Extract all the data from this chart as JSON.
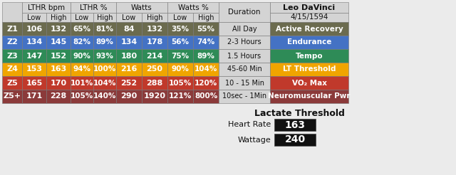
{
  "zones": [
    "Z1",
    "Z2",
    "Z3",
    "Z4",
    "Z5",
    "Z5+"
  ],
  "zone_colors": [
    "#6b6b4e",
    "#4472c4",
    "#2e8b57",
    "#f0a500",
    "#c0392b",
    "#8b3a3a"
  ],
  "lthr_bpm_low": [
    106,
    134,
    147,
    153,
    165,
    171
  ],
  "lthr_bpm_high": [
    132,
    145,
    152,
    163,
    170,
    228
  ],
  "lthr_pct_low": [
    "65%",
    "82%",
    "90%",
    "94%",
    "101%",
    "105%"
  ],
  "lthr_pct_high": [
    "81%",
    "89%",
    "93%",
    "100%",
    "104%",
    "140%"
  ],
  "watts_low": [
    84,
    134,
    180,
    216,
    252,
    290
  ],
  "watts_high": [
    132,
    178,
    214,
    250,
    288,
    1920
  ],
  "watts_pct_low": [
    "35%",
    "56%",
    "75%",
    "90%",
    "105%",
    "121%"
  ],
  "watts_pct_high": [
    "55%",
    "74%",
    "89%",
    "104%",
    "120%",
    "800%"
  ],
  "duration": [
    "All Day",
    "2-3 Hours",
    "1.5 Hours",
    "45-60 Min",
    "10 - 15 Min",
    "10sec - 1Min"
  ],
  "zone_names": [
    "Active Recovery",
    "Endurance",
    "Tempo",
    "LT Threshold",
    "VO₂ Max",
    "Neuromuscular Pwr"
  ],
  "athlete_name": "Leo DaVinci",
  "athlete_date": "4/15/1594",
  "lt_heart_rate": "163",
  "lt_wattage": "240",
  "header_bg": "#d4d4d4",
  "text_dark": "#111111",
  "bottom_box_color": "#111111",
  "fig_bg": "#ebebeb"
}
